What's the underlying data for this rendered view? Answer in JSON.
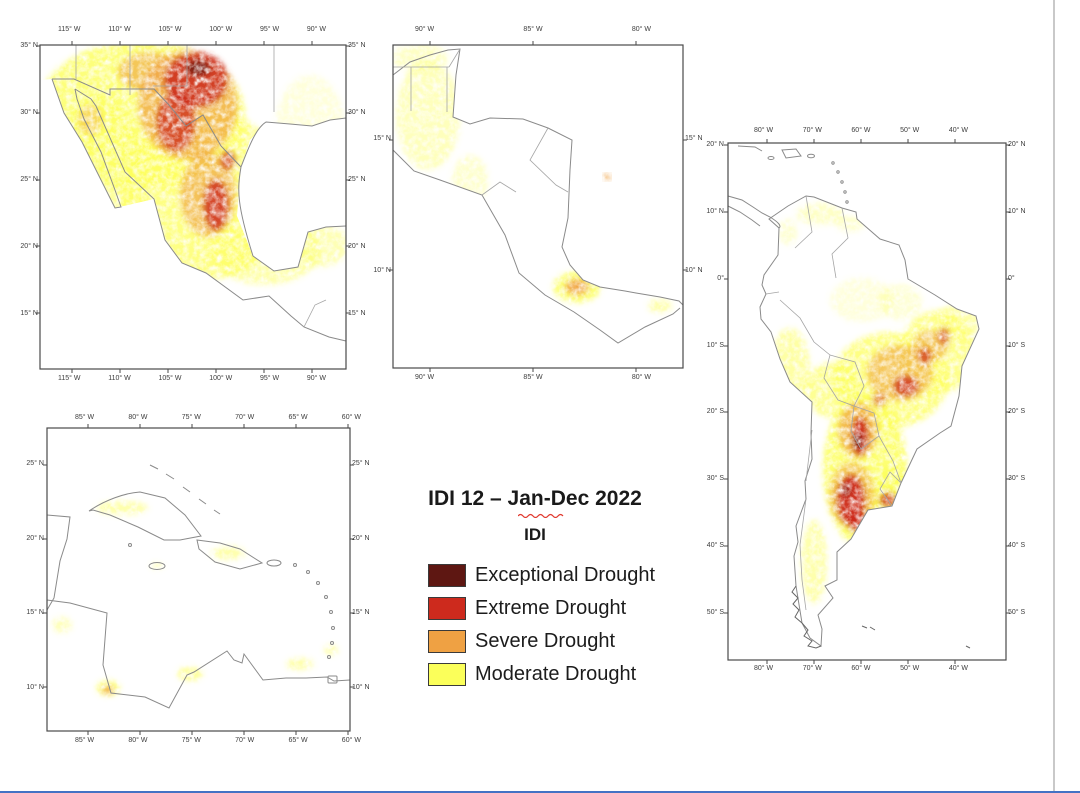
{
  "page": {
    "background": "#ffffff",
    "right_edge_color": "#c9c9c9",
    "bottom_edge_color": "#4472c4"
  },
  "legend": {
    "title": "IDI 12 – Jan-Dec 2022",
    "subtitle": "IDI",
    "items": [
      {
        "label": "Exceptional Drought",
        "color": "#5e1712"
      },
      {
        "label": "Extreme Drought",
        "color": "#cd2a1d"
      },
      {
        "label": "Severe Drought",
        "color": "#efa143"
      },
      {
        "label": "Moderate Drought",
        "color": "#fbff5a"
      }
    ]
  },
  "maps": [
    {
      "name": "Mexico and southern United States",
      "lon_ticks": [
        "115° W",
        "110° W",
        "105° W",
        "100° W",
        "95° W",
        "90° W"
      ],
      "lat_ticks": [
        "35° N",
        "30° N",
        "25° N",
        "20° N",
        "15° N"
      ]
    },
    {
      "name": "Central America",
      "lon_ticks": [
        "90° W",
        "85° W",
        "80° W"
      ],
      "lat_ticks": [
        "15° N",
        "10° N"
      ]
    },
    {
      "name": "Caribbean",
      "lon_ticks": [
        "85° W",
        "80° W",
        "75° W",
        "70° W",
        "65° W",
        "60° W"
      ],
      "lat_ticks": [
        "25° N",
        "20° N",
        "15° N",
        "10° N"
      ]
    },
    {
      "name": "South America",
      "lon_ticks": [
        "80° W",
        "70° W",
        "60° W",
        "50° W",
        "40° W"
      ],
      "lat_ticks": [
        "20° N",
        "10° N",
        "0°",
        "10° S",
        "20° S",
        "30° S",
        "40° S",
        "50° S"
      ]
    }
  ]
}
